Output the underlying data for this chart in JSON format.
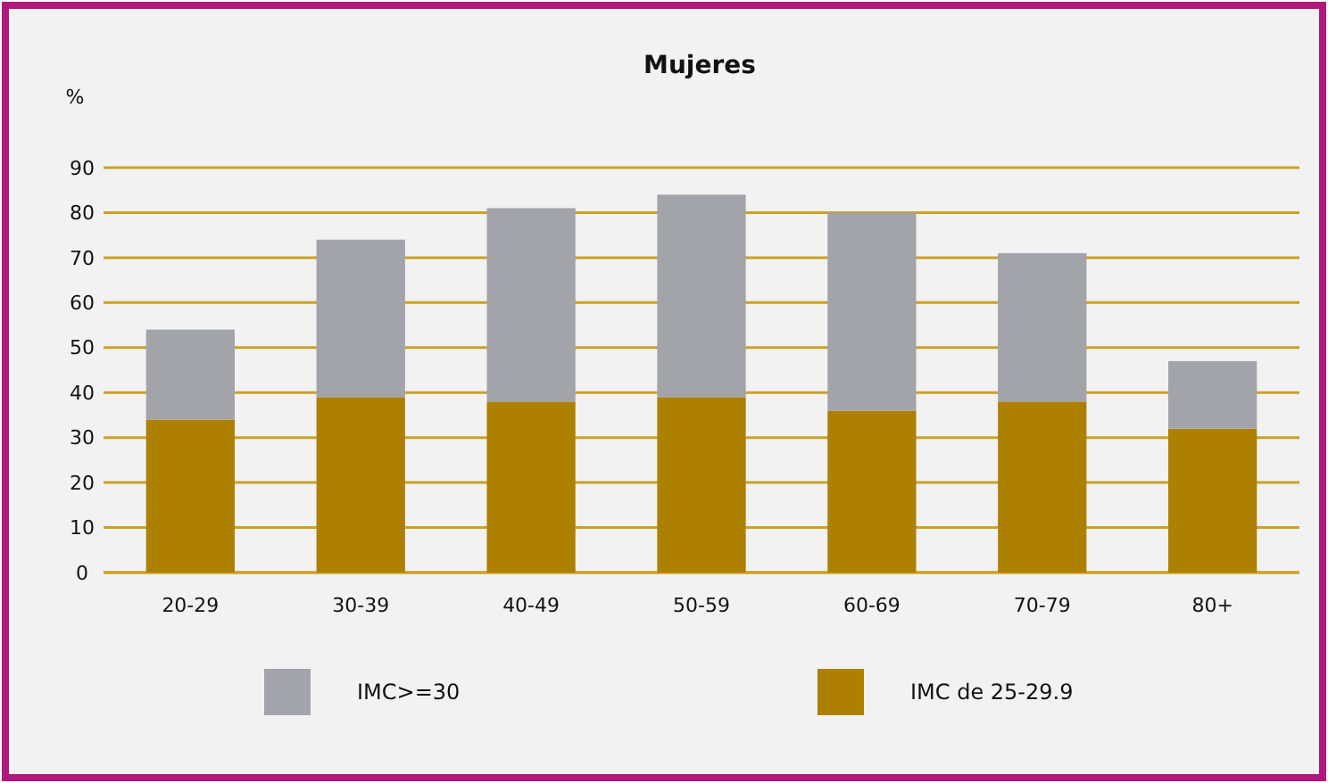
{
  "chart_data": {
    "type": "bar",
    "title": "Mujeres",
    "ylabel": "%",
    "stacked": true,
    "categories": [
      "20-29",
      "30-39",
      "40-49",
      "50-59",
      "60-69",
      "70-79",
      "80+"
    ],
    "series": [
      {
        "name": "IMC de 25-29.9",
        "color": "#ad8000",
        "values": [
          34,
          39,
          38,
          39,
          36,
          38,
          32
        ]
      },
      {
        "name": "IMC>=30",
        "color": "#a3a3aa",
        "values": [
          20,
          35,
          43,
          45,
          44,
          33,
          15
        ]
      }
    ],
    "ylim": [
      0,
      90
    ],
    "yticks": [
      0,
      10,
      20,
      30,
      40,
      50,
      60,
      70,
      80,
      90
    ],
    "grid": "y",
    "legend": "bottom"
  }
}
